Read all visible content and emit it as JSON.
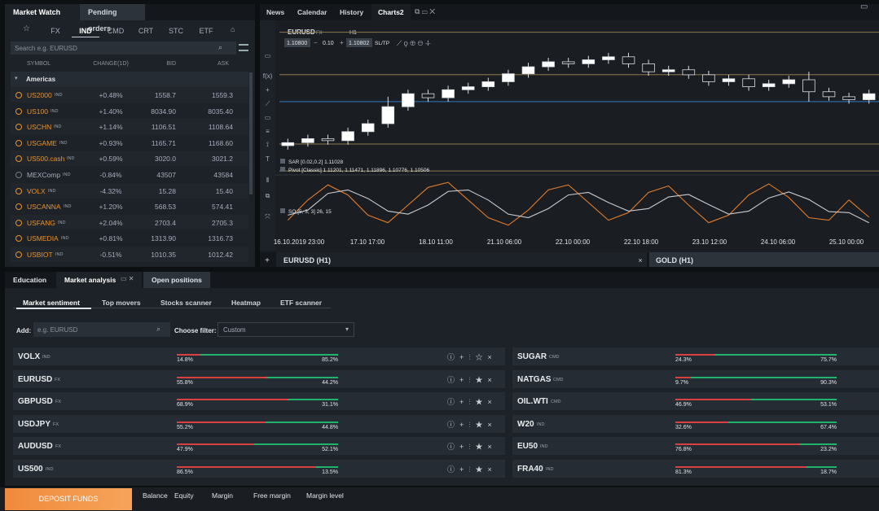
{
  "market_watch": {
    "tabs": [
      "Market Watch",
      "Pending orders"
    ],
    "filters": [
      "FX",
      "IND",
      "CMD",
      "CRT",
      "STC",
      "ETF"
    ],
    "active_filter": 1,
    "search_placeholder": "Search e.g. EURUSD",
    "columns": [
      "SYMBOL",
      "CHANGE(1D)",
      "BID",
      "ASK"
    ],
    "group": "Americas",
    "rows": [
      {
        "symbol": "US2000",
        "tag": "IND",
        "change": "+0.48%",
        "bid": "1558.7",
        "ask": "1559.3"
      },
      {
        "symbol": "US100",
        "tag": "IND",
        "change": "+1.40%",
        "bid": "8034.90",
        "ask": "8035.40"
      },
      {
        "symbol": "USCHN",
        "tag": "IND",
        "change": "+1.14%",
        "bid": "1106.51",
        "ask": "1108.64"
      },
      {
        "symbol": "USGAME",
        "tag": "IND",
        "change": "+0.93%",
        "bid": "1165.71",
        "ask": "1168.60"
      },
      {
        "symbol": "US500.cash",
        "tag": "IND",
        "change": "+0.59%",
        "bid": "3020.0",
        "ask": "3021.2"
      },
      {
        "symbol": "MEXComp",
        "tag": "IND",
        "change": "-0.84%",
        "bid": "43507",
        "ask": "43584"
      },
      {
        "symbol": "VOLX",
        "tag": "IND",
        "change": "-4.32%",
        "bid": "15.28",
        "ask": "15.40"
      },
      {
        "symbol": "USCANNA",
        "tag": "IND",
        "change": "+1.20%",
        "bid": "568.53",
        "ask": "574.41"
      },
      {
        "symbol": "USFANG",
        "tag": "IND",
        "change": "+2.04%",
        "bid": "2703.4",
        "ask": "2705.3"
      },
      {
        "symbol": "USMEDIA",
        "tag": "IND",
        "change": "+0.81%",
        "bid": "1313.90",
        "ask": "1316.73"
      },
      {
        "symbol": "USBIOT",
        "tag": "IND",
        "change": "-0.51%",
        "bid": "1010.35",
        "ask": "1012.42"
      }
    ]
  },
  "chart": {
    "tabs": [
      "News",
      "Calendar",
      "History",
      "Charts2"
    ],
    "symbol": "EURUSD",
    "symbol_type": "FX",
    "timeframe": "H1",
    "bid": "1.10800",
    "lot": "0.10",
    "ask": "1.10802",
    "sltp": "SL/TP",
    "indicators": [
      "SAR [0.02,0.2] 1.11028",
      "Pivot [Classic] 1.11201, 1.11471, 1.11896, 1.10776, 1.10506"
    ],
    "oscillator": "SO [5, 3, 3] 26, 15",
    "x_labels": [
      "16.10.2019 23:00",
      "17.10 17:00",
      "18.10 11:00",
      "21.10 06:00",
      "22.10 00:00",
      "22.10 18:00",
      "23.10 12:00",
      "24.10 06:00",
      "25.10 00:00"
    ],
    "chart_tabs": [
      "EURUSD (H1)",
      "GOLD (H1)"
    ],
    "type": "candlestick",
    "ylim": [
      1.1045,
      1.1195
    ],
    "pivot_levels": [
      1.11201,
      1.11471,
      1.11896,
      1.10776,
      1.10506
    ],
    "open": [
      1.1076,
      1.1079,
      1.1083,
      1.1081,
      1.109,
      1.1098,
      1.1115,
      1.1128,
      1.1124,
      1.1132,
      1.1135,
      1.114,
      1.1148,
      1.1155,
      1.116,
      1.1158,
      1.1162,
      1.1165,
      1.1158,
      1.115,
      1.1152,
      1.1147,
      1.114,
      1.1143,
      1.1135,
      1.1138,
      1.1142,
      1.113,
      1.1125,
      1.1122
    ],
    "high": [
      1.1083,
      1.1087,
      1.1087,
      1.1094,
      1.1102,
      1.1125,
      1.1132,
      1.1132,
      1.1136,
      1.1139,
      1.1144,
      1.1152,
      1.1159,
      1.1164,
      1.1164,
      1.1166,
      1.1169,
      1.1169,
      1.1162,
      1.1156,
      1.1156,
      1.1151,
      1.1147,
      1.1147,
      1.1142,
      1.1146,
      1.115,
      1.1134,
      1.1129,
      1.1132
    ],
    "low": [
      1.1072,
      1.1075,
      1.1077,
      1.1077,
      1.1086,
      1.1094,
      1.1111,
      1.112,
      1.112,
      1.1128,
      1.1131,
      1.1136,
      1.1144,
      1.1151,
      1.1154,
      1.1154,
      1.1158,
      1.1154,
      1.1146,
      1.1146,
      1.1143,
      1.1136,
      1.1136,
      1.1131,
      1.1131,
      1.1134,
      1.112,
      1.1121,
      1.1118,
      1.1118
    ],
    "close": [
      1.1079,
      1.1083,
      1.1081,
      1.109,
      1.1098,
      1.1115,
      1.1128,
      1.1124,
      1.1132,
      1.1135,
      1.114,
      1.1148,
      1.1155,
      1.116,
      1.1158,
      1.1162,
      1.1165,
      1.1158,
      1.115,
      1.1152,
      1.1147,
      1.114,
      1.1143,
      1.1135,
      1.1138,
      1.1142,
      1.113,
      1.1125,
      1.1122,
      1.1128
    ],
    "so_ylim": [
      0,
      100
    ],
    "so_k": [
      20,
      60,
      90,
      70,
      30,
      15,
      50,
      85,
      95,
      60,
      25,
      10,
      40,
      80,
      90,
      55,
      20,
      35,
      75,
      88,
      50,
      15,
      30,
      70,
      92,
      65,
      25,
      20,
      60,
      26
    ],
    "so_d": [
      30,
      40,
      73,
      80,
      63,
      38,
      32,
      50,
      77,
      80,
      60,
      32,
      25,
      43,
      70,
      75,
      55,
      38,
      43,
      66,
      71,
      51,
      32,
      38,
      64,
      76,
      61,
      37,
      35,
      15
    ]
  },
  "analysis": {
    "tabs": [
      "Education",
      "Market analysis",
      "Open positions"
    ],
    "subtabs": [
      "Market sentiment",
      "Top movers",
      "Stocks scanner",
      "Heatmap",
      "ETF scanner"
    ],
    "add_label": "Add:",
    "add_placeholder": "e.g. EURUSD",
    "filter_label": "Choose filter:",
    "filter_value": "Custom",
    "left": [
      {
        "symbol": "VOLX",
        "tag": "IND",
        "values": [
          14.8,
          85.2
        ],
        "value_labels": [
          "14.8%",
          "85.2%"
        ]
      },
      {
        "symbol": "EURUSD",
        "tag": "FX",
        "values": [
          55.8,
          44.2
        ],
        "value_labels": [
          "55.8%",
          "44.2%"
        ]
      },
      {
        "symbol": "GBPUSD",
        "tag": "FX",
        "values": [
          68.9,
          31.1
        ],
        "value_labels": [
          "68.9%",
          "31.1%"
        ]
      },
      {
        "symbol": "USDJPY",
        "tag": "FX",
        "values": [
          55.2,
          44.8
        ],
        "value_labels": [
          "55.2%",
          "44.8%"
        ]
      },
      {
        "symbol": "AUDUSD",
        "tag": "FX",
        "values": [
          47.9,
          52.1
        ],
        "value_labels": [
          "47.9%",
          "52.1%"
        ]
      },
      {
        "symbol": "US500",
        "tag": "IND",
        "values": [
          86.5,
          13.5
        ],
        "value_labels": [
          "86.5%",
          "13.5%"
        ]
      }
    ],
    "right": [
      {
        "symbol": "SUGAR",
        "tag": "CMD",
        "values": [
          24.3,
          75.7
        ],
        "value_labels": [
          "24.3%",
          "75.7%"
        ]
      },
      {
        "symbol": "NATGAS",
        "tag": "CMD",
        "values": [
          9.7,
          90.3
        ],
        "value_labels": [
          "9.7%",
          "90.3%"
        ]
      },
      {
        "symbol": "OIL.WTI",
        "tag": "CMD",
        "values": [
          46.9,
          53.1
        ],
        "value_labels": [
          "46.9%",
          "53.1%"
        ]
      },
      {
        "symbol": "W20",
        "tag": "IND",
        "values": [
          32.6,
          67.4
        ],
        "value_labels": [
          "32.6%",
          "67.4%"
        ]
      },
      {
        "symbol": "EU50",
        "tag": "IND",
        "values": [
          76.8,
          23.2
        ],
        "value_labels": [
          "76.8%",
          "23.2%"
        ]
      },
      {
        "symbol": "FRA40",
        "tag": "IND",
        "values": [
          81.3,
          18.7
        ],
        "value_labels": [
          "81.3%",
          "18.7%"
        ]
      }
    ]
  },
  "footer": {
    "deposit": "DEPOSIT FUNDS",
    "fields": [
      "Balance",
      "Equity",
      "Margin",
      "Free margin",
      "Margin level"
    ]
  }
}
